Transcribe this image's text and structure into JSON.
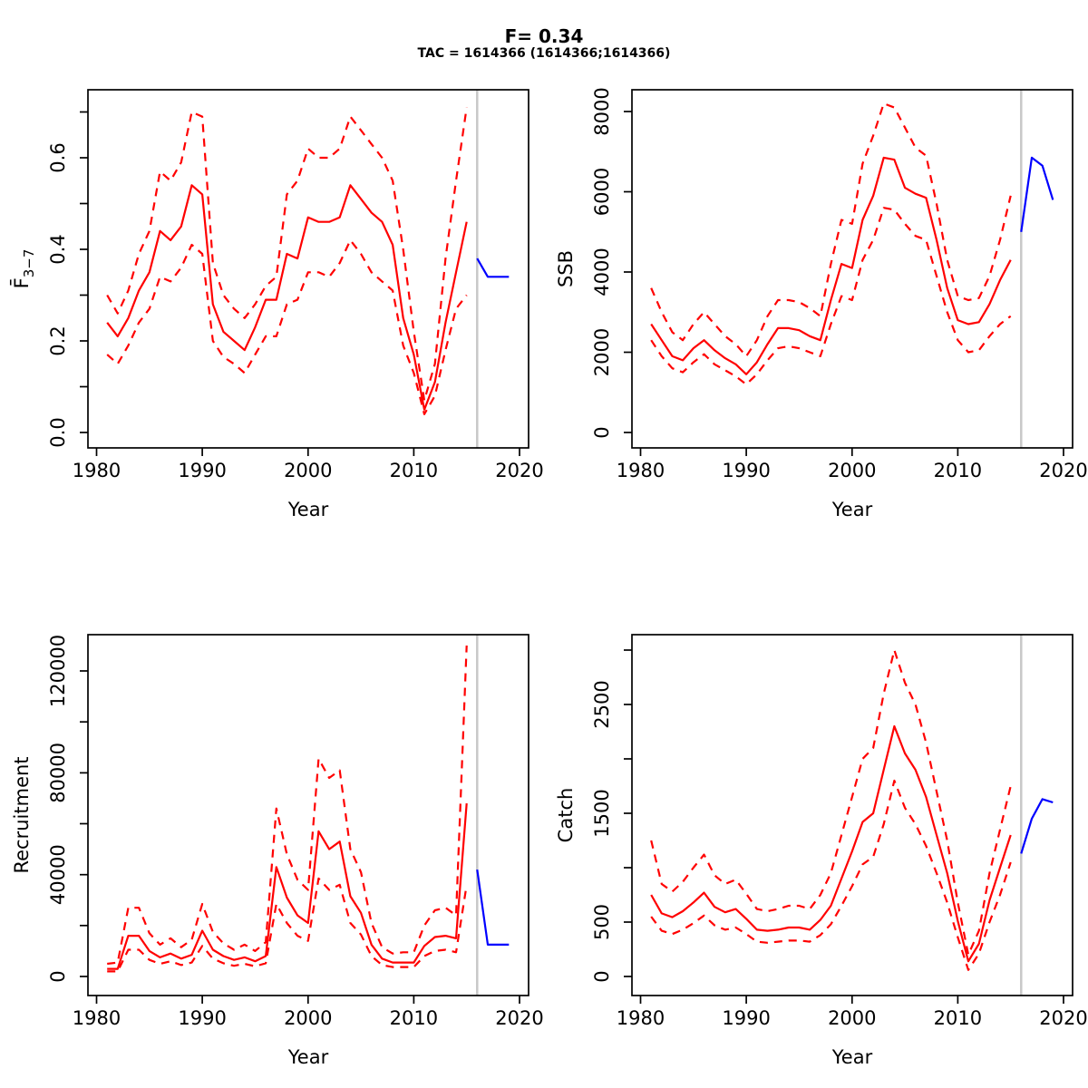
{
  "figure": {
    "title": "F= 0.34",
    "subtitle": "TAC = 1614366 (1614366;1614366)"
  },
  "colors": {
    "median_line": "#ff0000",
    "ci_line": "#ff0000",
    "forecast_line": "#0000ff",
    "forecast_divider": "#c8c8c8",
    "axis": "#000000",
    "background": "#ffffff"
  },
  "chart_data": [
    {
      "id": "fbar",
      "type": "line",
      "ylabel": "F̄3−7",
      "ylabel_main": "F̄",
      "ylabel_sub": "3−7",
      "xlabel": "Year",
      "xlim": [
        1979.2,
        2020.8
      ],
      "ylim": [
        0,
        0.745
      ],
      "x_ticks": [
        {
          "v": 1980,
          "label": "1980"
        },
        {
          "v": 1990,
          "label": "1990"
        },
        {
          "v": 2000,
          "label": "2000"
        },
        {
          "v": 2010,
          "label": "2010"
        },
        {
          "v": 2020,
          "label": "2020"
        }
      ],
      "y_ticks": [
        {
          "v": 0,
          "label": "0.0"
        },
        {
          "v": 0.1,
          "label": ""
        },
        {
          "v": 0.2,
          "label": "0.2"
        },
        {
          "v": 0.3,
          "label": ""
        },
        {
          "v": 0.4,
          "label": "0.4"
        },
        {
          "v": 0.5,
          "label": ""
        },
        {
          "v": 0.6,
          "label": "0.6"
        },
        {
          "v": 0.7,
          "label": ""
        }
      ],
      "divider_year": 2016,
      "series": [
        {
          "name": "median",
          "style": "solid",
          "color": "#ff0000",
          "x_start": 1981,
          "values": [
            0.24,
            0.21,
            0.25,
            0.31,
            0.35,
            0.44,
            0.42,
            0.45,
            0.54,
            0.52,
            0.28,
            0.22,
            0.2,
            0.18,
            0.23,
            0.29,
            0.29,
            0.39,
            0.38,
            0.47,
            0.46,
            0.46,
            0.47,
            0.54,
            0.51,
            0.48,
            0.46,
            0.41,
            0.25,
            0.17,
            0.05,
            0.11,
            0.24,
            0.35,
            0.46
          ]
        },
        {
          "name": "upper_ci",
          "style": "dashed",
          "color": "#ff0000",
          "x_start": 1981,
          "values": [
            0.3,
            0.26,
            0.31,
            0.39,
            0.44,
            0.57,
            0.55,
            0.59,
            0.7,
            0.69,
            0.37,
            0.3,
            0.27,
            0.25,
            0.28,
            0.32,
            0.34,
            0.52,
            0.55,
            0.62,
            0.6,
            0.6,
            0.62,
            0.69,
            0.66,
            0.63,
            0.6,
            0.55,
            0.4,
            0.22,
            0.07,
            0.15,
            0.38,
            0.55,
            0.71
          ]
        },
        {
          "name": "lower_ci",
          "style": "dashed",
          "color": "#ff0000",
          "x_start": 1981,
          "values": [
            0.17,
            0.15,
            0.19,
            0.24,
            0.27,
            0.34,
            0.33,
            0.36,
            0.41,
            0.39,
            0.2,
            0.165,
            0.15,
            0.13,
            0.17,
            0.21,
            0.21,
            0.28,
            0.29,
            0.35,
            0.35,
            0.34,
            0.37,
            0.42,
            0.39,
            0.35,
            0.33,
            0.31,
            0.19,
            0.13,
            0.04,
            0.08,
            0.18,
            0.27,
            0.3
          ]
        },
        {
          "name": "forecast",
          "style": "solid",
          "color": "#0000ff",
          "x_start": 2016,
          "values": [
            0.38,
            0.34,
            0.34,
            0.34
          ]
        }
      ]
    },
    {
      "id": "ssb",
      "type": "line",
      "ylabel": "SSB",
      "xlabel": "Year",
      "xlim": [
        1979.2,
        2020.8
      ],
      "ylim": [
        0,
        8500
      ],
      "x_ticks": [
        {
          "v": 1980,
          "label": "1980"
        },
        {
          "v": 1990,
          "label": "1990"
        },
        {
          "v": 2000,
          "label": "2000"
        },
        {
          "v": 2010,
          "label": "2010"
        },
        {
          "v": 2020,
          "label": "2020"
        }
      ],
      "y_ticks": [
        {
          "v": 0,
          "label": "0"
        },
        {
          "v": 2000,
          "label": "2000"
        },
        {
          "v": 4000,
          "label": "4000"
        },
        {
          "v": 6000,
          "label": "6000"
        },
        {
          "v": 8000,
          "label": "8000"
        }
      ],
      "divider_year": 2016,
      "series": [
        {
          "name": "median",
          "style": "solid",
          "color": "#ff0000",
          "x_start": 1981,
          "values": [
            2700,
            2300,
            1900,
            1800,
            2100,
            2300,
            2050,
            1850,
            1700,
            1450,
            1750,
            2200,
            2600,
            2600,
            2550,
            2400,
            2300,
            3300,
            4200,
            4100,
            5300,
            5900,
            6850,
            6800,
            6100,
            5950,
            5850,
            4800,
            3600,
            2800,
            2700,
            2750,
            3200,
            3800,
            4300
          ]
        },
        {
          "name": "upper_ci",
          "style": "dashed",
          "color": "#ff0000",
          "x_start": 1981,
          "values": [
            3600,
            3000,
            2500,
            2300,
            2700,
            3000,
            2700,
            2400,
            2200,
            1900,
            2300,
            2900,
            3300,
            3300,
            3250,
            3100,
            2900,
            4200,
            5300,
            5200,
            6700,
            7400,
            8200,
            8100,
            7600,
            7100,
            6900,
            5700,
            4300,
            3400,
            3300,
            3350,
            3900,
            4800,
            5900
          ]
        },
        {
          "name": "lower_ci",
          "style": "dashed",
          "color": "#ff0000",
          "x_start": 1981,
          "values": [
            2300,
            1900,
            1600,
            1500,
            1750,
            1950,
            1700,
            1550,
            1400,
            1200,
            1450,
            1800,
            2100,
            2150,
            2100,
            2000,
            1900,
            2700,
            3400,
            3300,
            4300,
            4800,
            5600,
            5550,
            5200,
            4900,
            4800,
            3900,
            3000,
            2300,
            2000,
            2050,
            2400,
            2700,
            2900
          ]
        },
        {
          "name": "forecast",
          "style": "solid",
          "color": "#0000ff",
          "x_start": 2016,
          "values": [
            5000,
            6850,
            6650,
            5800
          ]
        }
      ]
    },
    {
      "id": "recruitment",
      "type": "line",
      "ylabel": "Recruitment",
      "xlabel": "Year",
      "xlim": [
        1979.2,
        2020.8
      ],
      "ylim": [
        0,
        134000
      ],
      "x_ticks": [
        {
          "v": 1980,
          "label": "1980"
        },
        {
          "v": 1990,
          "label": "1990"
        },
        {
          "v": 2000,
          "label": "2000"
        },
        {
          "v": 2010,
          "label": "2010"
        },
        {
          "v": 2020,
          "label": "2020"
        }
      ],
      "y_ticks": [
        {
          "v": 0,
          "label": "0"
        },
        {
          "v": 20000,
          "label": ""
        },
        {
          "v": 40000,
          "label": "40000"
        },
        {
          "v": 60000,
          "label": ""
        },
        {
          "v": 80000,
          "label": "80000"
        },
        {
          "v": 100000,
          "label": ""
        },
        {
          "v": 120000,
          "label": "120000"
        }
      ],
      "divider_year": 2016,
      "series": [
        {
          "name": "median",
          "style": "solid",
          "color": "#ff0000",
          "x_start": 1981,
          "values": [
            3000,
            3000,
            16000,
            16000,
            10000,
            7500,
            9000,
            7000,
            8500,
            18000,
            10500,
            8000,
            6500,
            7500,
            6000,
            8000,
            43000,
            31000,
            24000,
            21000,
            57000,
            50000,
            53000,
            31500,
            25000,
            12500,
            7000,
            5500,
            5500,
            5500,
            12000,
            15500,
            16000,
            15000,
            68000
          ]
        },
        {
          "name": "upper_ci",
          "style": "dashed",
          "color": "#ff0000",
          "x_start": 1981,
          "values": [
            5000,
            5500,
            27000,
            27000,
            17000,
            12500,
            15000,
            11500,
            14500,
            28500,
            17500,
            13000,
            10500,
            12500,
            10000,
            13500,
            66000,
            48000,
            38000,
            34000,
            85500,
            78000,
            81000,
            50000,
            41000,
            21000,
            11500,
            9000,
            9500,
            9500,
            20000,
            26000,
            27000,
            24000,
            130000
          ]
        },
        {
          "name": "lower_ci",
          "style": "dashed",
          "color": "#ff0000",
          "x_start": 1981,
          "values": [
            2000,
            2000,
            10500,
            10500,
            6500,
            5000,
            6000,
            4500,
            5500,
            12000,
            7000,
            5200,
            4200,
            5000,
            4000,
            5200,
            28500,
            21000,
            16000,
            14000,
            38500,
            34000,
            36000,
            21000,
            16500,
            8000,
            4500,
            3700,
            3700,
            3700,
            8000,
            10000,
            10500,
            9500,
            36000
          ]
        },
        {
          "name": "forecast",
          "style": "solid",
          "color": "#0000ff",
          "x_start": 2016,
          "values": [
            42000,
            12500,
            12500,
            12500
          ]
        }
      ]
    },
    {
      "id": "catch",
      "type": "line",
      "ylabel": "Catch",
      "xlabel": "Year",
      "xlim": [
        1979.2,
        2020.8
      ],
      "ylim": [
        0,
        3150
      ],
      "x_ticks": [
        {
          "v": 1980,
          "label": "1980"
        },
        {
          "v": 1990,
          "label": "1990"
        },
        {
          "v": 2000,
          "label": "2000"
        },
        {
          "v": 2010,
          "label": "2010"
        },
        {
          "v": 2020,
          "label": "2020"
        }
      ],
      "y_ticks": [
        {
          "v": 0,
          "label": "0"
        },
        {
          "v": 500,
          "label": "500"
        },
        {
          "v": 1000,
          "label": ""
        },
        {
          "v": 1500,
          "label": "1500"
        },
        {
          "v": 2000,
          "label": ""
        },
        {
          "v": 2500,
          "label": "2500"
        },
        {
          "v": 3000,
          "label": ""
        }
      ],
      "divider_year": 2016,
      "series": [
        {
          "name": "median",
          "style": "solid",
          "color": "#ff0000",
          "x_start": 1981,
          "values": [
            750,
            580,
            545,
            600,
            680,
            770,
            640,
            590,
            620,
            530,
            430,
            420,
            430,
            450,
            450,
            430,
            520,
            650,
            900,
            1150,
            1420,
            1500,
            1900,
            2300,
            2050,
            1900,
            1650,
            1300,
            950,
            510,
            140,
            300,
            700,
            1000,
            1300
          ]
        },
        {
          "name": "upper_ci",
          "style": "dashed",
          "color": "#ff0000",
          "x_start": 1981,
          "values": [
            1250,
            850,
            780,
            870,
            1000,
            1120,
            930,
            850,
            890,
            760,
            620,
            600,
            620,
            650,
            650,
            620,
            750,
            950,
            1300,
            1650,
            2000,
            2100,
            2600,
            3000,
            2700,
            2500,
            2150,
            1700,
            1250,
            680,
            200,
            420,
            950,
            1350,
            1750
          ]
        },
        {
          "name": "lower_ci",
          "style": "dashed",
          "color": "#ff0000",
          "x_start": 1981,
          "values": [
            550,
            420,
            390,
            430,
            490,
            560,
            470,
            430,
            450,
            390,
            320,
            310,
            320,
            330,
            330,
            320,
            380,
            480,
            650,
            830,
            1030,
            1100,
            1400,
            1800,
            1550,
            1400,
            1200,
            950,
            680,
            360,
            60,
            210,
            500,
            750,
            1050
          ]
        },
        {
          "name": "forecast",
          "style": "solid",
          "color": "#0000ff",
          "x_start": 2016,
          "values": [
            1130,
            1450,
            1630,
            1600
          ]
        }
      ]
    }
  ]
}
